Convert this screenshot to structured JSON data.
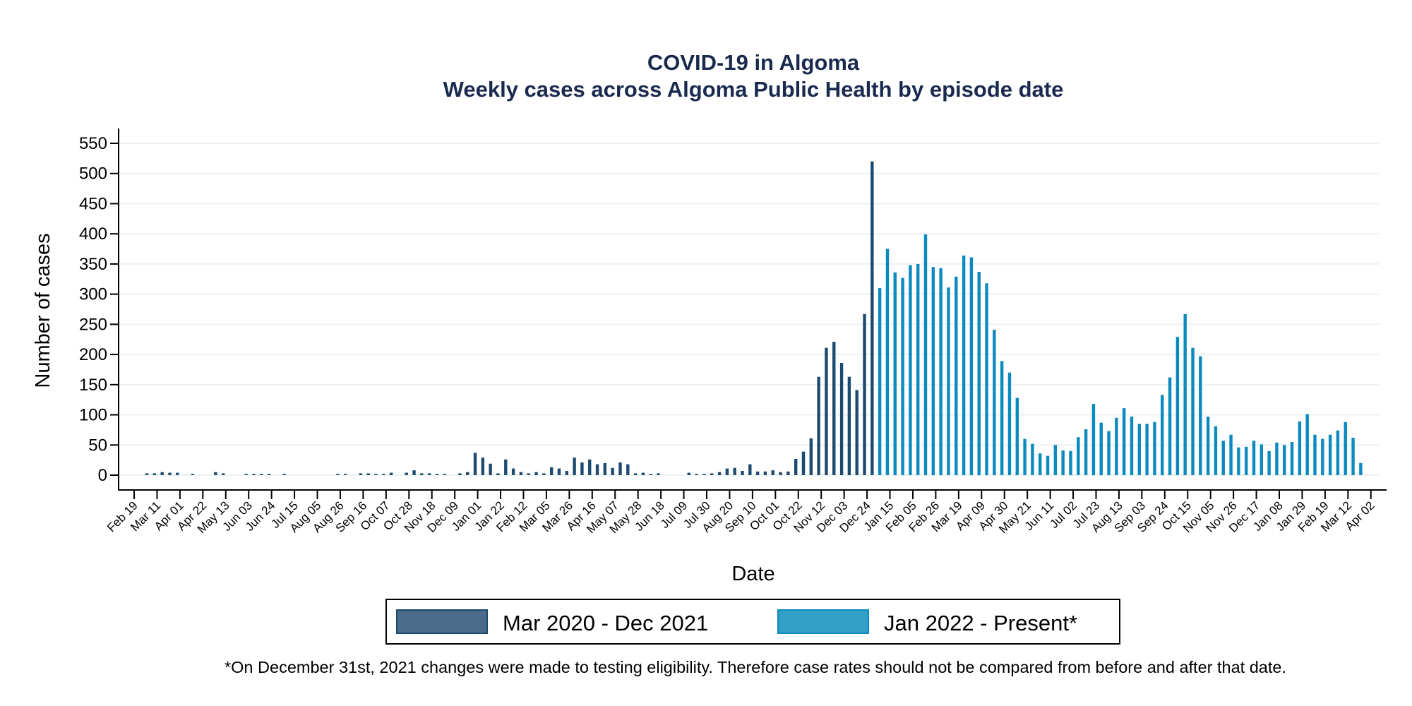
{
  "chart_data": {
    "type": "bar",
    "title": "COVID-19 in Algoma",
    "subtitle": "Weekly cases across Algoma Public Health by episode date",
    "xlabel": "Date",
    "ylabel": "Number of cases",
    "ylim": [
      0,
      550
    ],
    "yticks": [
      0,
      50,
      100,
      150,
      200,
      250,
      300,
      350,
      400,
      450,
      500,
      550
    ],
    "grid": true,
    "xtick_labels": [
      "Feb 19",
      "Mar 11",
      "Apr 01",
      "Apr 22",
      "May 13",
      "Jun 03",
      "Jun 24",
      "Jul 15",
      "Aug 05",
      "Aug 26",
      "Sep 16",
      "Oct 07",
      "Oct 28",
      "Nov 18",
      "Dec 09",
      "Jan 01",
      "Jan 22",
      "Feb 12",
      "Mar 05",
      "Mar 26",
      "Apr 16",
      "May 07",
      "May 28",
      "Jun 18",
      "Jul 09",
      "Jul 30",
      "Aug 20",
      "Sep 10",
      "Oct 01",
      "Oct 22",
      "Nov 12",
      "Dec 03",
      "Dec 24",
      "Jan 15",
      "Feb 05",
      "Feb 26",
      "Mar 19",
      "Apr 09",
      "Apr 30",
      "May 21",
      "Jun 11",
      "Jul 02",
      "Jul 23",
      "Aug 13",
      "Sep 03",
      "Sep 24",
      "Oct 15",
      "Nov 05",
      "Nov 26",
      "Dec 17",
      "Jan 08",
      "Jan 29",
      "Feb 19",
      "Mar 12",
      "Apr 02"
    ],
    "x_tick_interval_weeks": 3,
    "bar_week_offset_from_first_tick": 1.67,
    "series": [
      {
        "name": "Mar 2020 - Dec 2021",
        "color": "#1c4a70",
        "legend_fill": "#4a6b8a",
        "start_week_index": 0,
        "values": [
          3,
          3,
          5,
          4,
          4,
          0,
          2,
          0,
          0,
          5,
          3,
          0,
          0,
          2,
          2,
          2,
          2,
          0,
          2,
          0,
          0,
          0,
          0,
          0,
          0,
          2,
          2,
          0,
          3,
          3,
          2,
          2,
          4,
          0,
          4,
          8,
          3,
          3,
          2,
          2,
          0,
          3,
          5,
          37,
          29,
          19,
          3,
          26,
          11,
          5,
          3,
          5,
          3,
          13,
          11,
          7,
          29,
          21,
          26,
          18,
          20,
          12,
          21,
          18,
          3,
          4,
          2,
          3,
          0,
          0,
          0,
          4,
          2,
          2,
          3,
          5,
          11,
          12,
          7,
          18,
          6,
          6,
          8,
          5,
          6,
          27,
          39,
          61,
          163,
          211,
          221,
          186,
          163,
          141,
          267,
          520
        ]
      },
      {
        "name": "Jan 2022 - Present*",
        "color": "#0b8ac0",
        "legend_fill": "#33a0c8",
        "start_week_index": 96,
        "values": [
          310,
          375,
          336,
          327,
          348,
          350,
          399,
          345,
          343,
          311,
          329,
          364,
          361,
          337,
          318,
          241,
          189,
          170,
          128,
          60,
          52,
          36,
          32,
          50,
          41,
          40,
          63,
          76,
          118,
          87,
          73,
          95,
          111,
          97,
          85,
          85,
          88,
          133,
          162,
          229,
          267,
          211,
          197,
          97,
          81,
          57,
          67,
          46,
          47,
          57,
          51,
          40,
          54,
          50,
          55,
          89,
          101,
          67,
          60,
          67,
          74,
          88,
          62,
          20
        ]
      }
    ],
    "legend_position": "bottom-center",
    "footnote": "*On December 31st, 2021 changes were made to testing eligibility. Therefore case rates should not be compared from before and after that date."
  },
  "colors": {
    "title": "#1a2a4f",
    "gridline": "#eaf2f4",
    "axis": "#000000"
  }
}
